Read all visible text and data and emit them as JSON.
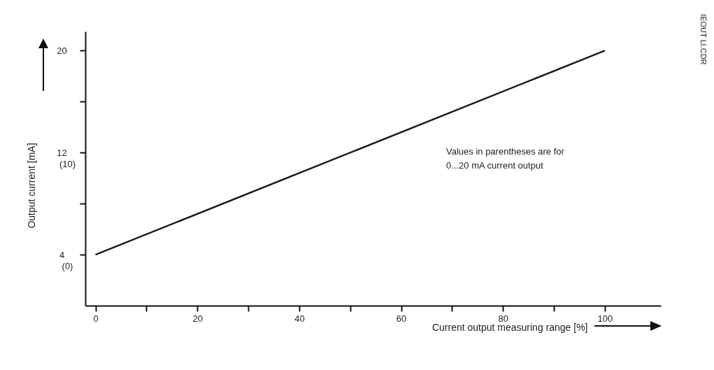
{
  "chart_data": {
    "type": "line",
    "xlabel": "Current output measuring range [%]",
    "ylabel": "Output current [mA]",
    "x": [
      0,
      100
    ],
    "series": [
      {
        "color": "#1a1a1a",
        "values": [
          4,
          20
        ]
      }
    ],
    "xlim": [
      -2,
      111
    ],
    "xticks": [
      0,
      {
        "value": 10,
        "label": null
      },
      20,
      {
        "value": 30,
        "label": null
      },
      40,
      {
        "value": 50,
        "label": null
      },
      60,
      {
        "value": 70,
        "label": null
      },
      80,
      {
        "value": 90,
        "label": null
      },
      100
    ],
    "ylim": [
      0,
      21.5
    ],
    "yticks": [
      4,
      {
        "value": 8,
        "label": null
      },
      12,
      {
        "value": 16,
        "label": null
      },
      20
    ],
    "grid": false,
    "legend": false,
    "marker": "none",
    "line_style": "solid",
    "annotations": [
      "Values in parentheses are for 0...20 mA current output",
      "IEOUT LI.CDR"
    ],
    "y2lim": [
      -3.9,
      22.95
    ],
    "y2ticks": [
      {
        "value": 0,
        "label": "(0)"
      },
      {
        "value": 10,
        "label": "(10)"
      }
    ]
  }
}
